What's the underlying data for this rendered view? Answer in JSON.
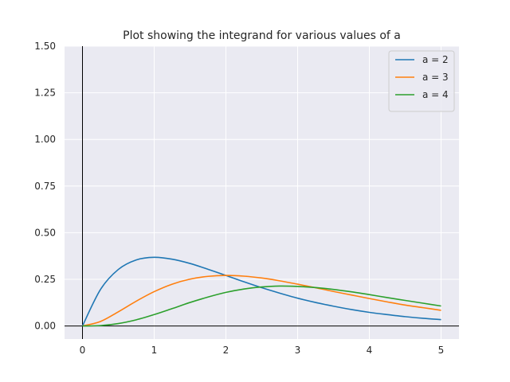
{
  "chart_data": {
    "type": "line",
    "title": "Plot showing the integrand for various values of a",
    "xlabel": "",
    "ylabel": "",
    "xlim": [
      -0.25,
      5.25
    ],
    "ylim": [
      -0.07,
      1.5
    ],
    "xticks": [
      0,
      1,
      2,
      3,
      4,
      5
    ],
    "xtick_labels": [
      "0",
      "1",
      "2",
      "3",
      "4",
      "5"
    ],
    "yticks": [
      0.0,
      0.25,
      0.5,
      0.75,
      1.0,
      1.25,
      1.5
    ],
    "ytick_labels": [
      "0.00",
      "0.25",
      "0.50",
      "0.75",
      "1.00",
      "1.25",
      "1.50"
    ],
    "grid": true,
    "legend_position": "top-right",
    "x": [
      0,
      0.25,
      0.5,
      0.75,
      1,
      1.25,
      1.5,
      1.75,
      2,
      2.25,
      2.5,
      2.75,
      3,
      3.25,
      3.5,
      3.75,
      4,
      4.25,
      4.5,
      4.75,
      5
    ],
    "series": [
      {
        "name": "a = 2",
        "color": "#1f77b4",
        "values": [
          0,
          0.195,
          0.303,
          0.354,
          0.368,
          0.358,
          0.335,
          0.304,
          0.271,
          0.237,
          0.205,
          0.176,
          0.149,
          0.126,
          0.106,
          0.088,
          0.073,
          0.061,
          0.05,
          0.041,
          0.034
        ]
      },
      {
        "name": "a = 3",
        "color": "#ff7f0e",
        "values": [
          0,
          0.024,
          0.076,
          0.133,
          0.184,
          0.224,
          0.251,
          0.266,
          0.271,
          0.267,
          0.257,
          0.242,
          0.224,
          0.205,
          0.185,
          0.166,
          0.147,
          0.129,
          0.112,
          0.098,
          0.084
        ]
      },
      {
        "name": "a = 4",
        "color": "#2ca02c",
        "values": [
          0,
          0.002,
          0.013,
          0.033,
          0.061,
          0.093,
          0.126,
          0.155,
          0.18,
          0.198,
          0.209,
          0.214,
          0.212,
          0.206,
          0.196,
          0.183,
          0.168,
          0.152,
          0.137,
          0.122,
          0.107
        ]
      }
    ]
  }
}
